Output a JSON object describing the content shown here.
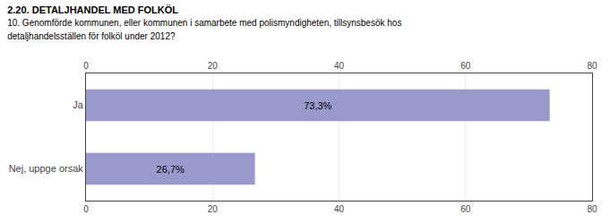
{
  "chart_data": {
    "type": "bar",
    "orientation": "horizontal",
    "title": "2.20. DETALJHANDEL MED FOLKÖL",
    "subtitle": "10. Genomförde kommunen, eller kommunen i samarbete med polismyndigheten, tillsynsbesök hos\ndetaljhandelsställen för folköl under 2012?",
    "categories": [
      "Ja",
      "Nej, uppge orsak"
    ],
    "values": [
      73.3,
      26.7
    ],
    "value_labels": [
      "73,3%",
      "26,7%"
    ],
    "data_labels": true,
    "color": "#9999cc",
    "xlim": [
      0,
      80
    ],
    "xticks": [
      0,
      20,
      40,
      60,
      80
    ],
    "grid": true
  }
}
